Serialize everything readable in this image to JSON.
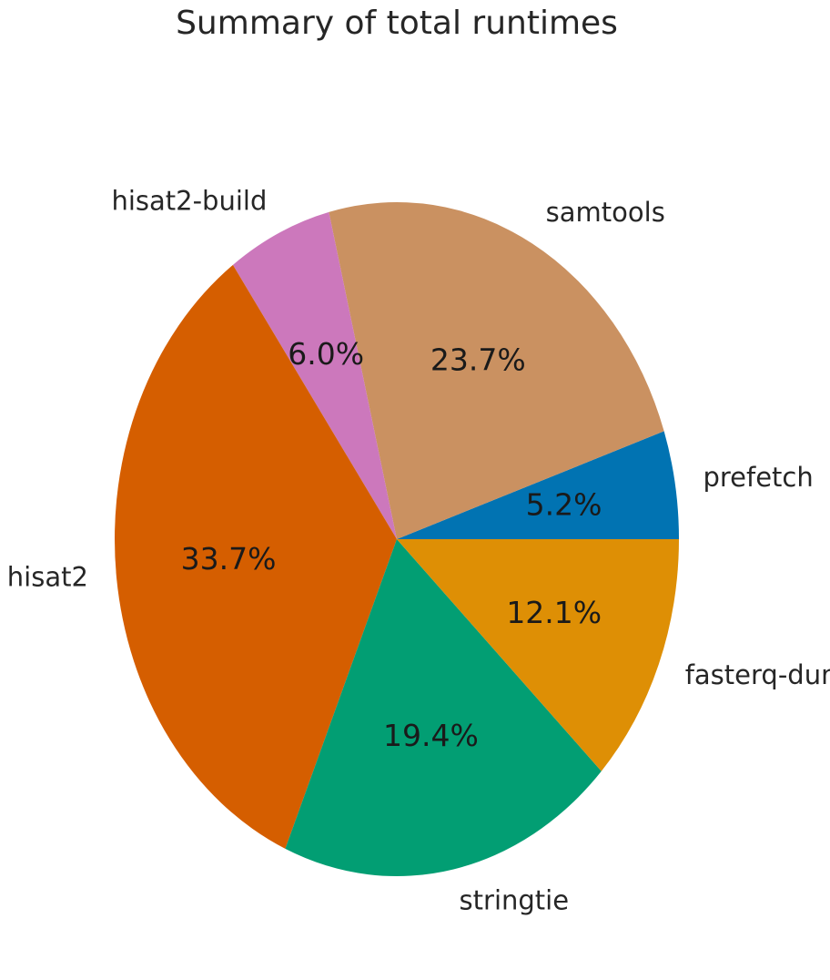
{
  "chart_data": {
    "type": "pie",
    "title": "Summary of total runtimes",
    "start_angle_deg": 0,
    "direction": "counterclockwise",
    "slices": [
      {
        "label": "prefetch",
        "value": 5.2,
        "pct_label": "5.2%",
        "color": "#0173b2"
      },
      {
        "label": "samtools",
        "value": 23.7,
        "pct_label": "23.7%",
        "color": "#ca9161"
      },
      {
        "label": "hisat2-build",
        "value": 6.0,
        "pct_label": "6.0%",
        "color": "#cc78bc"
      },
      {
        "label": "hisat2",
        "value": 33.7,
        "pct_label": "33.7%",
        "color": "#d55e00"
      },
      {
        "label": "stringtie",
        "value": 19.4,
        "pct_label": "19.4%",
        "color": "#029e73"
      },
      {
        "label": "fasterq-dump",
        "value": 12.1,
        "pct_label": "12.1%",
        "color": "#de8f05"
      }
    ]
  }
}
